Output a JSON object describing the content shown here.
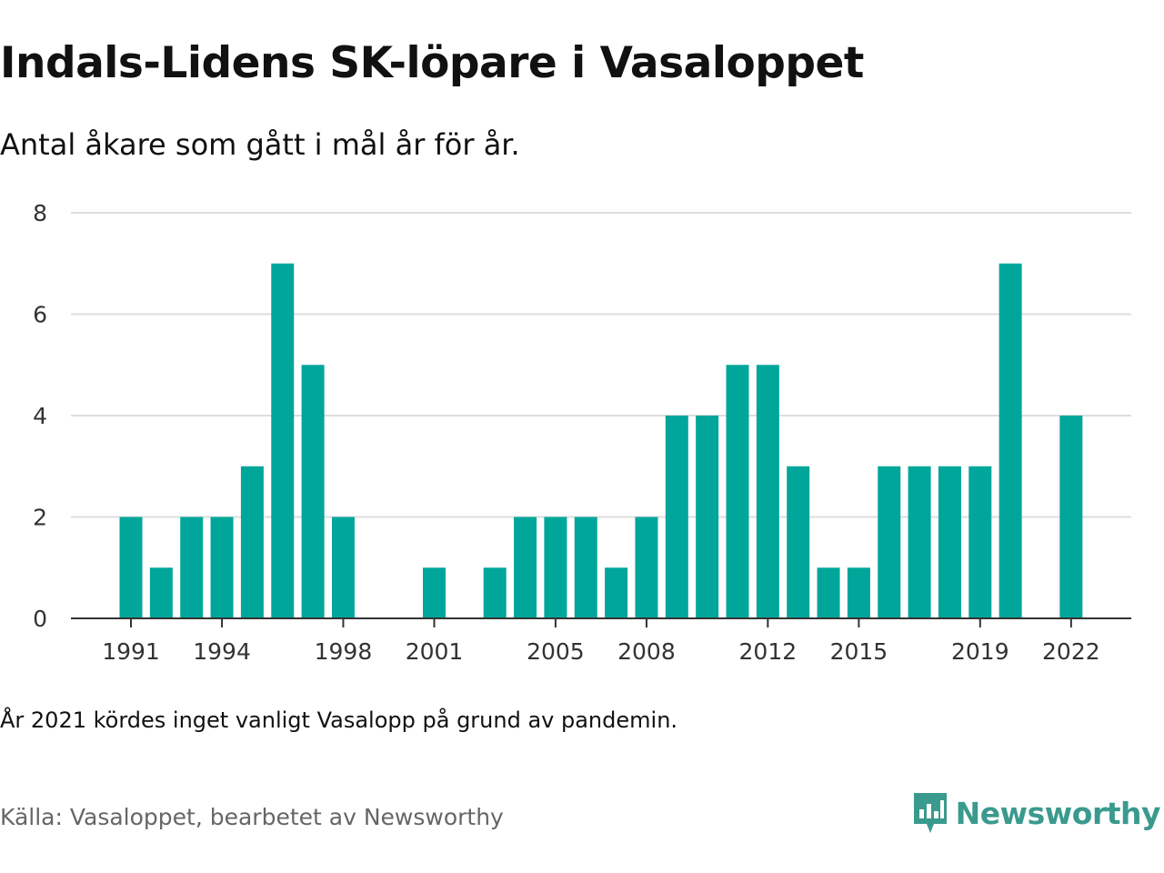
{
  "header": {
    "title": "Indals-Lidens SK-löpare i Vasaloppet",
    "subtitle": "Antal åkare som gått i mål år för år."
  },
  "note": "År 2021 kördes inget vanligt Vasalopp på grund av pandemin.",
  "source": "Källa: Vasaloppet, bearbetet av Newsworthy",
  "brand": {
    "name": "Newsworthy",
    "logo_icon": "newsworthy-logo-icon",
    "color": "#3a9a8d"
  },
  "colors": {
    "bar": "#00a69a",
    "grid": "#dddddd",
    "axis": "#333333"
  },
  "chart_data": {
    "type": "bar",
    "categories": [
      "1991",
      "1992",
      "1993",
      "1994",
      "1995",
      "1996",
      "1997",
      "1998",
      "1999",
      "2000",
      "2001",
      "2002",
      "2003",
      "2004",
      "2005",
      "2006",
      "2007",
      "2008",
      "2009",
      "2010",
      "2011",
      "2012",
      "2013",
      "2014",
      "2015",
      "2016",
      "2017",
      "2018",
      "2019",
      "2020",
      "2021",
      "2022"
    ],
    "values": [
      2,
      1,
      2,
      2,
      3,
      7,
      5,
      2,
      0,
      0,
      1,
      0,
      1,
      2,
      2,
      2,
      1,
      2,
      4,
      4,
      5,
      5,
      3,
      1,
      1,
      3,
      3,
      3,
      3,
      7,
      0,
      4
    ],
    "x_tick_labels": [
      "1991",
      "1994",
      "1998",
      "2001",
      "2005",
      "2008",
      "2012",
      "2015",
      "2019",
      "2022"
    ],
    "y_ticks": [
      0,
      2,
      4,
      6,
      8
    ],
    "ylim": [
      0,
      8
    ],
    "grid": true,
    "legend": "none"
  }
}
